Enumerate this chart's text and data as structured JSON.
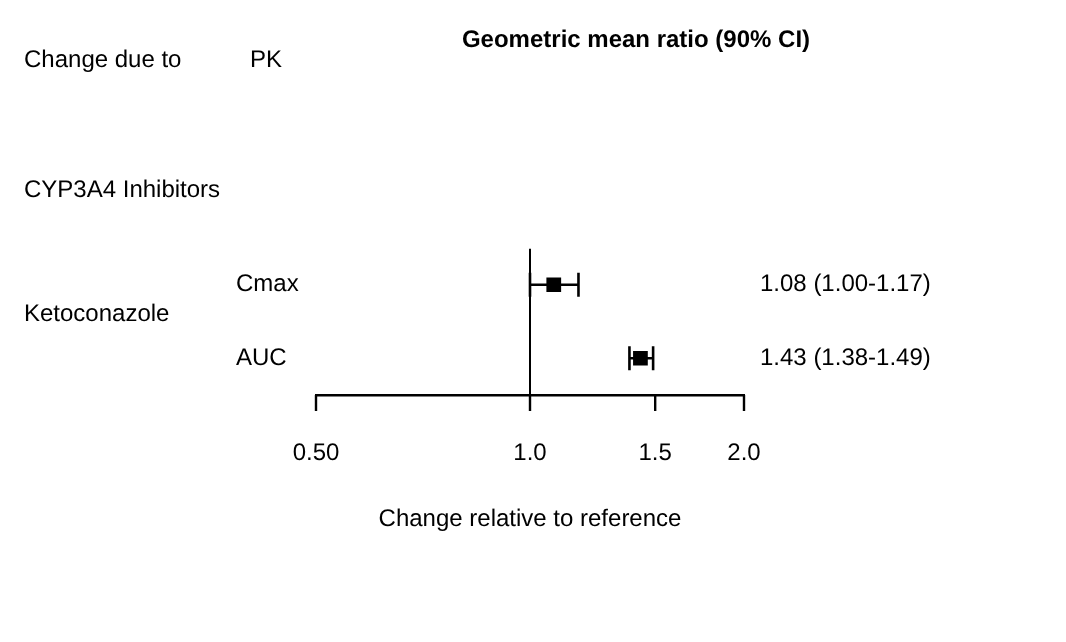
{
  "chart_data": {
    "type": "scatter",
    "title": "Geometric mean ratio (90% CI)",
    "xlabel": "Change relative to reference",
    "orientation": "horizontal",
    "categories": [
      "Cmax",
      "AUC"
    ],
    "values": [
      1.08,
      1.43
    ],
    "errors": [
      [
        1.0,
        1.17
      ],
      [
        1.38,
        1.49
      ]
    ],
    "value_labels": [
      "1.08 (1.00-1.17)",
      "1.43 (1.38-1.49)"
    ],
    "color": "#000000",
    "marker": "square",
    "log": "x",
    "xlim": [
      0.5,
      2.0
    ],
    "xticks": [
      {
        "value": 0.5,
        "label": "0.50"
      },
      {
        "value": 1,
        "label": "1.0"
      },
      1.5,
      {
        "value": 2,
        "label": "2.0"
      }
    ],
    "ref_lines": [
      {
        "axis": "x",
        "value": 1
      }
    ],
    "grid": false,
    "legend": false,
    "annotations": [
      "Change due to",
      "PK",
      "CYP3A4 Inhibitors",
      "Ketoconazole"
    ]
  }
}
